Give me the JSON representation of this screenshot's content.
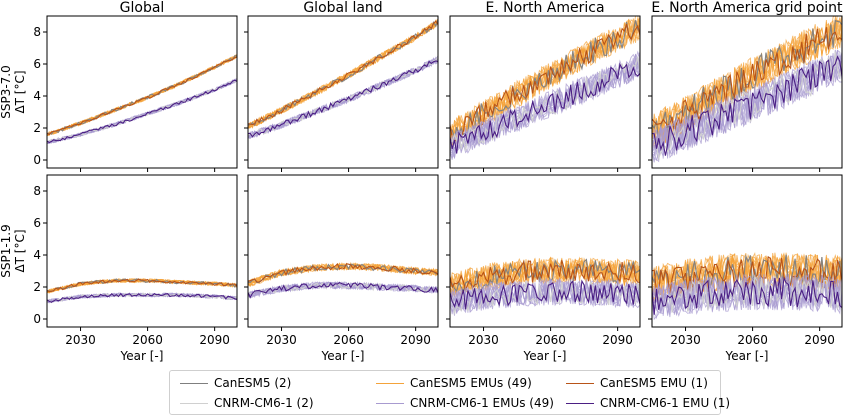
{
  "panels": {
    "columns": [
      "Global",
      "Global land",
      "E. North America",
      "E. North America grid point"
    ],
    "rows": [
      {
        "scenario": "SSP3-7.0",
        "ylabel": "ΔT [°C]"
      },
      {
        "scenario": "SSP1-1.9",
        "ylabel": "ΔT [°C]"
      }
    ],
    "yticks": [
      "0",
      "2",
      "4",
      "6",
      "8"
    ],
    "xticks": [
      "2030",
      "2060",
      "2090"
    ],
    "xlabel": "Year [-]"
  },
  "legend": {
    "placement": "bottom-center",
    "entries": [
      {
        "label": "CanESM5 (2)",
        "color": "#7f7f7f",
        "width": 1.6
      },
      {
        "label": "CNRM-CM6-1 (2)",
        "color": "#d0d0d0",
        "width": 1.2
      },
      {
        "label": "CanESM5 EMUs (49)",
        "color": "#f4a33a",
        "width": 1.6
      },
      {
        "label": "CNRM-CM6-1 EMUs (49)",
        "color": "#a89bd0",
        "width": 1.6
      },
      {
        "label": "CanESM5 EMU (1)",
        "color": "#b85418",
        "width": 1.6
      },
      {
        "label": "CNRM-CM6-1 EMU (1)",
        "color": "#4b1f84",
        "width": 1.6
      }
    ]
  },
  "chart_data": {
    "type": "line",
    "x_range": [
      2015,
      2100
    ],
    "ylim": [
      -0.5,
      9
    ],
    "grid": false,
    "panels": [
      {
        "row": "SSP3-7.0",
        "column": "Global",
        "series": [
          {
            "name": "CanESM5 EMUs (49)",
            "x": [
              2015,
              2030,
              2045,
              2060,
              2075,
              2090,
              2100
            ],
            "y": [
              1.6,
              2.3,
              3.1,
              3.9,
              4.8,
              5.8,
              6.5
            ]
          },
          {
            "name": "CNRM-CM6-1 EMUs (49)",
            "x": [
              2015,
              2030,
              2045,
              2060,
              2075,
              2090,
              2100
            ],
            "y": [
              1.1,
              1.6,
              2.2,
              2.9,
              3.6,
              4.4,
              5.0
            ]
          }
        ]
      },
      {
        "row": "SSP3-7.0",
        "column": "Global land",
        "series": [
          {
            "name": "CanESM5 EMUs (49)",
            "x": [
              2015,
              2030,
              2045,
              2060,
              2075,
              2090,
              2100
            ],
            "y": [
              2.1,
              3.1,
              4.2,
              5.3,
              6.5,
              7.7,
              8.6
            ]
          },
          {
            "name": "CNRM-CM6-1 EMUs (49)",
            "x": [
              2015,
              2030,
              2045,
              2060,
              2075,
              2090,
              2100
            ],
            "y": [
              1.5,
              2.2,
              3.0,
              3.8,
              4.7,
              5.6,
              6.3
            ]
          }
        ]
      },
      {
        "row": "SSP3-7.0",
        "column": "E. North America",
        "series": [
          {
            "name": "CanESM5 EMUs (49)",
            "x": [
              2015,
              2030,
              2045,
              2060,
              2075,
              2090,
              2100
            ],
            "y": [
              1.6,
              2.9,
              4.1,
              5.3,
              6.5,
              7.6,
              8.3
            ]
          },
          {
            "name": "CNRM-CM6-1 EMUs (49)",
            "x": [
              2015,
              2030,
              2045,
              2060,
              2075,
              2090,
              2100
            ],
            "y": [
              0.8,
              1.7,
              2.6,
              3.5,
              4.4,
              5.3,
              6.0
            ]
          }
        ]
      },
      {
        "row": "SSP3-7.0",
        "column": "E. North America grid point",
        "series": [
          {
            "name": "CanESM5 EMUs (49)",
            "x": [
              2015,
              2030,
              2045,
              2060,
              2075,
              2090,
              2100
            ],
            "y": [
              1.7,
              2.9,
              4.1,
              5.3,
              6.4,
              7.5,
              8.2
            ]
          },
          {
            "name": "CNRM-CM6-1 EMUs (49)",
            "x": [
              2015,
              2030,
              2045,
              2060,
              2075,
              2090,
              2100
            ],
            "y": [
              0.8,
              1.7,
              2.6,
              3.5,
              4.4,
              5.3,
              6.0
            ]
          }
        ]
      },
      {
        "row": "SSP1-1.9",
        "column": "Global",
        "series": [
          {
            "name": "CanESM5 EMUs (49)",
            "x": [
              2015,
              2030,
              2045,
              2060,
              2075,
              2090,
              2100
            ],
            "y": [
              1.7,
              2.2,
              2.4,
              2.4,
              2.3,
              2.2,
              2.1
            ]
          },
          {
            "name": "CNRM-CM6-1 EMUs (49)",
            "x": [
              2015,
              2030,
              2045,
              2060,
              2075,
              2090,
              2100
            ],
            "y": [
              1.1,
              1.4,
              1.5,
              1.5,
              1.5,
              1.4,
              1.3
            ]
          }
        ]
      },
      {
        "row": "SSP1-1.9",
        "column": "Global land",
        "series": [
          {
            "name": "CanESM5 EMUs (49)",
            "x": [
              2015,
              2030,
              2045,
              2060,
              2075,
              2090,
              2100
            ],
            "y": [
              2.2,
              2.9,
              3.2,
              3.3,
              3.2,
              3.0,
              2.9
            ]
          },
          {
            "name": "CNRM-CM6-1 EMUs (49)",
            "x": [
              2015,
              2030,
              2045,
              2060,
              2075,
              2090,
              2100
            ],
            "y": [
              1.5,
              1.9,
              2.1,
              2.1,
              2.0,
              1.9,
              1.8
            ]
          }
        ]
      },
      {
        "row": "SSP1-1.9",
        "column": "E. North America",
        "series": [
          {
            "name": "CanESM5 EMUs (49)",
            "x": [
              2015,
              2030,
              2045,
              2060,
              2075,
              2090,
              2100
            ],
            "y": [
              2.0,
              2.6,
              2.9,
              3.0,
              3.0,
              2.9,
              2.8
            ]
          },
          {
            "name": "CNRM-CM6-1 EMUs (49)",
            "x": [
              2015,
              2030,
              2045,
              2060,
              2075,
              2090,
              2100
            ],
            "y": [
              1.0,
              1.4,
              1.6,
              1.7,
              1.7,
              1.6,
              1.5
            ]
          }
        ]
      },
      {
        "row": "SSP1-1.9",
        "column": "E. North America grid point",
        "series": [
          {
            "name": "CanESM5 EMUs (49)",
            "x": [
              2015,
              2030,
              2045,
              2060,
              2075,
              2090,
              2100
            ],
            "y": [
              2.1,
              2.6,
              2.9,
              3.0,
              3.0,
              2.9,
              2.8
            ]
          },
          {
            "name": "CNRM-CM6-1 EMUs (49)",
            "x": [
              2015,
              2030,
              2045,
              2060,
              2075,
              2090,
              2100
            ],
            "y": [
              1.0,
              1.4,
              1.6,
              1.7,
              1.7,
              1.6,
              1.5
            ]
          }
        ]
      }
    ]
  }
}
